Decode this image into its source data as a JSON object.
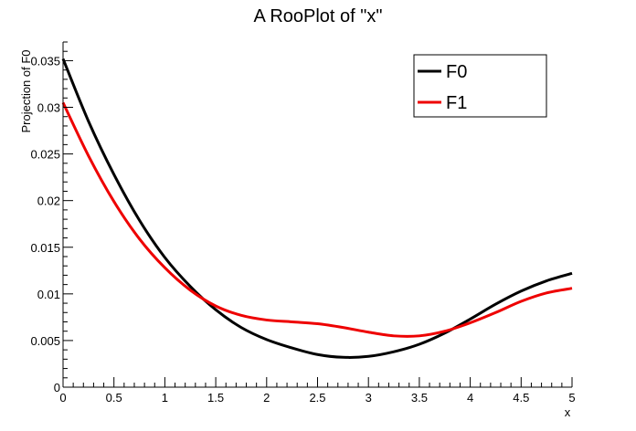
{
  "chart_data": {
    "type": "line",
    "title": "A RooPlot of \"x\"",
    "xlabel": "x",
    "ylabel": "Projection of F0",
    "xlim": [
      0,
      5
    ],
    "ylim": [
      0,
      0.037
    ],
    "x_ticks": [
      0,
      0.5,
      1,
      1.5,
      2,
      2.5,
      3,
      3.5,
      4,
      4.5,
      5
    ],
    "x_tick_labels": [
      "0",
      "0.5",
      "1",
      "1.5",
      "2",
      "2.5",
      "3",
      "3.5",
      "4",
      "4.5",
      "5"
    ],
    "y_ticks": [
      0,
      0.005,
      0.01,
      0.015,
      0.02,
      0.025,
      0.03,
      0.035
    ],
    "y_tick_labels": [
      "0",
      "0.005",
      "0.01",
      "0.015",
      "0.02",
      "0.025",
      "0.03",
      "0.035"
    ],
    "grid": false,
    "legend_position": "top-right",
    "series": [
      {
        "name": "F0",
        "color": "#000000",
        "x": [
          0,
          0.25,
          0.5,
          0.75,
          1.0,
          1.25,
          1.5,
          1.75,
          2.0,
          2.25,
          2.5,
          2.75,
          3.0,
          3.25,
          3.5,
          3.75,
          4.0,
          4.25,
          4.5,
          4.75,
          5.0
        ],
        "y": [
          0.0352,
          0.0285,
          0.0228,
          0.0179,
          0.0139,
          0.0108,
          0.0083,
          0.0064,
          0.0051,
          0.0042,
          0.0035,
          0.0032,
          0.0033,
          0.0038,
          0.0046,
          0.0058,
          0.0073,
          0.0089,
          0.0103,
          0.0114,
          0.0122
        ]
      },
      {
        "name": "F1",
        "color": "#ee0000",
        "x": [
          0,
          0.25,
          0.5,
          0.75,
          1.0,
          1.25,
          1.5,
          1.75,
          2.0,
          2.25,
          2.5,
          2.75,
          3.0,
          3.25,
          3.5,
          3.75,
          4.0,
          4.25,
          4.5,
          4.75,
          5.0
        ],
        "y": [
          0.0305,
          0.0248,
          0.0199,
          0.0159,
          0.0128,
          0.0104,
          0.0087,
          0.0077,
          0.0072,
          0.007,
          0.0068,
          0.0064,
          0.0059,
          0.0055,
          0.0055,
          0.006,
          0.0069,
          0.008,
          0.0092,
          0.0101,
          0.0106
        ]
      }
    ]
  }
}
